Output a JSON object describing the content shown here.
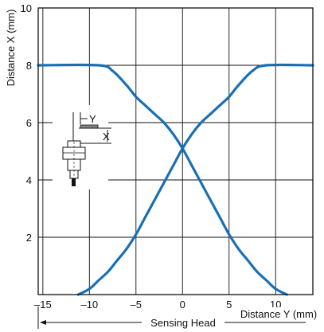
{
  "chart_data": {
    "type": "line",
    "xlabel": "Distance Y (mm)",
    "ylabel": "Distance X (mm)",
    "xlim": [
      -15.5,
      14
    ],
    "ylim": [
      0,
      10
    ],
    "xticks": [
      -15,
      -10,
      -5,
      0,
      5,
      10
    ],
    "yticks": [
      2,
      4,
      6,
      8,
      10
    ],
    "xtick_labels": [
      "–15",
      "–10",
      "–5",
      "0",
      "5",
      "10"
    ],
    "ytick_labels": [
      "2",
      "4",
      "6",
      "8",
      "10"
    ],
    "grid": true,
    "line_color": "#1a6fb4",
    "series": [
      {
        "x": [
          -15.5,
          -9,
          -7.5,
          -6,
          -5,
          -4,
          -3,
          -2,
          -1,
          0,
          1,
          2,
          3,
          4,
          5,
          6,
          7,
          8,
          9,
          10,
          11.2
        ],
        "y": [
          8.0,
          8.0,
          7.8,
          7.3,
          6.9,
          6.6,
          6.3,
          6.0,
          5.6,
          5.1,
          4.5,
          3.9,
          3.3,
          2.7,
          2.1,
          1.6,
          1.2,
          0.8,
          0.5,
          0.2,
          0.0
        ]
      },
      {
        "x": [
          -11.2,
          -10,
          -9,
          -8,
          -7,
          -6,
          -5,
          -4,
          -3,
          -2,
          -1,
          0,
          1,
          2,
          3,
          4,
          5,
          6,
          7.5,
          9,
          14
        ],
        "y": [
          0.0,
          0.2,
          0.5,
          0.8,
          1.2,
          1.6,
          2.1,
          2.7,
          3.3,
          3.9,
          4.5,
          5.1,
          5.6,
          6.0,
          6.3,
          6.6,
          6.9,
          7.3,
          7.8,
          8.0,
          8.0
        ]
      }
    ],
    "annotations": {
      "arrow_label": "Sensing Head",
      "diagram_y_label": "Y",
      "diagram_x_label": "X"
    }
  }
}
